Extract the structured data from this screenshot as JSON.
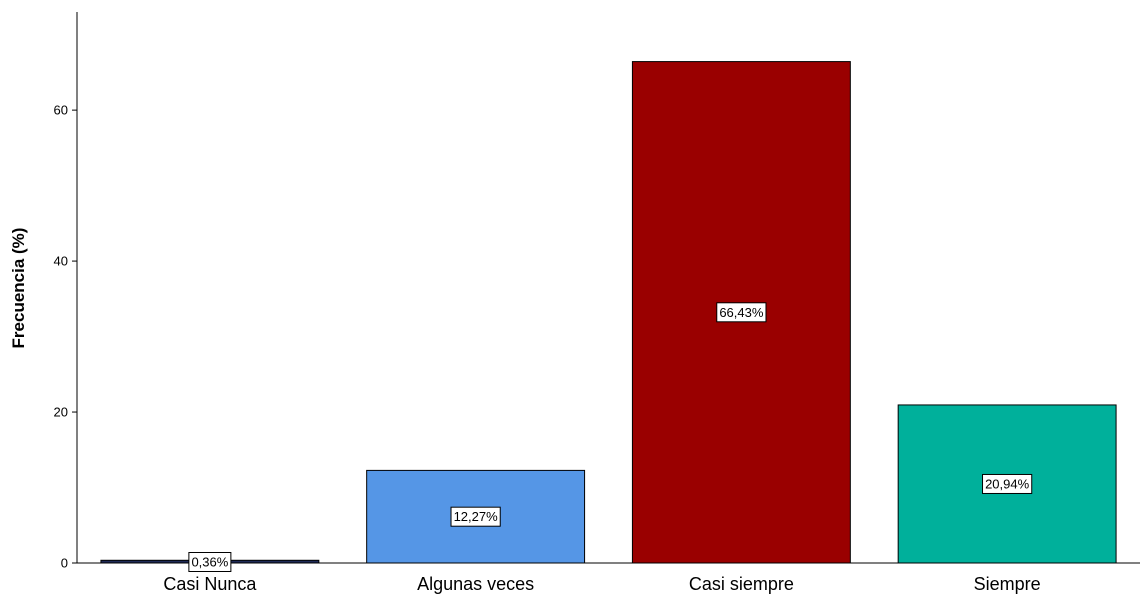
{
  "chart_data": {
    "type": "bar",
    "title": "",
    "xlabel": "",
    "ylabel": "Frecuencia (%)",
    "ylim": [
      0,
      73
    ],
    "yticks": [
      0,
      20,
      40,
      60
    ],
    "categories": [
      "Casi Nunca",
      "Algunas veces",
      "Casi siempre",
      "Siempre"
    ],
    "values": [
      0.36,
      12.27,
      66.43,
      20.94
    ],
    "data_labels": [
      "0,36%",
      "12,27%",
      "66,43%",
      "20,94%"
    ],
    "colors": [
      "#1f2a57",
      "#5596e6",
      "#9a0000",
      "#00b09b"
    ],
    "grid": false,
    "legend": "none"
  }
}
